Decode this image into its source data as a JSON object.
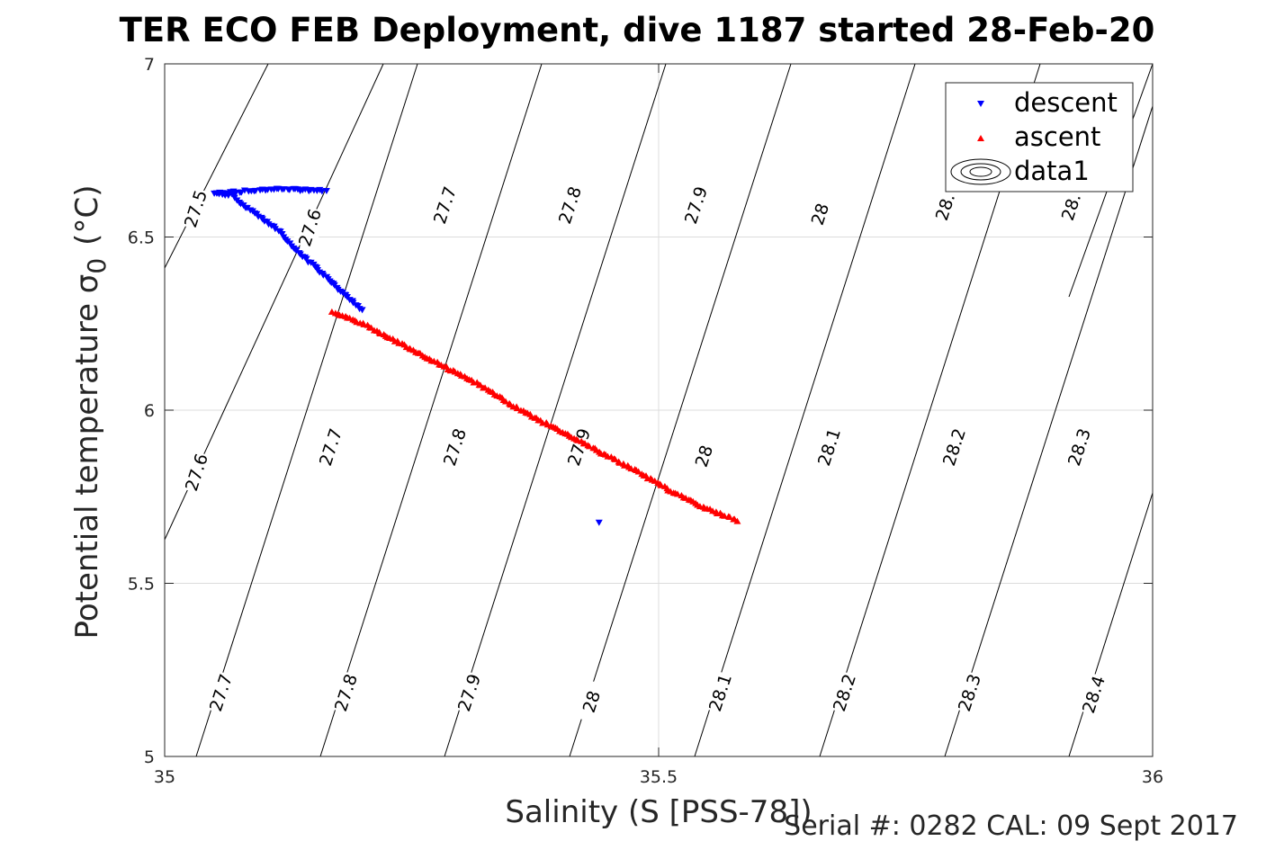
{
  "chart_data": {
    "type": "scatter",
    "title": "TER ECO FEB Deployment, dive 1187 started 28-Feb-20",
    "xlabel": "Salinity (S [PSS-78])",
    "ylabel_main": "Potential temperature σ",
    "ylabel_sub": "0",
    "ylabel_unit": "(°C)",
    "xlim": [
      35,
      36
    ],
    "ylim": [
      5,
      7
    ],
    "xticks": [
      35,
      35.5,
      36
    ],
    "xtick_labels": [
      "35",
      "35.5",
      "36"
    ],
    "yticks": [
      5,
      5.5,
      6,
      6.5,
      7
    ],
    "ytick_labels": [
      "5",
      "5.5",
      "6",
      "6.5",
      "7"
    ],
    "grid": true,
    "legend": {
      "placement": "top-right",
      "entries": [
        "descent",
        "ascent",
        "data1"
      ]
    },
    "series": [
      {
        "name": "descent",
        "color": "#0000ff",
        "marker": "triangle-down",
        "points": [
          [
            35.163,
            6.635
          ],
          [
            35.148,
            6.635
          ],
          [
            35.13,
            6.637
          ],
          [
            35.11,
            6.638
          ],
          [
            35.09,
            6.635
          ],
          [
            35.07,
            6.63
          ],
          [
            35.05,
            6.625
          ],
          [
            35.07,
            6.622
          ],
          [
            35.075,
            6.6
          ],
          [
            35.095,
            6.56
          ],
          [
            35.115,
            6.52
          ],
          [
            35.13,
            6.47
          ],
          [
            35.15,
            6.42
          ],
          [
            35.165,
            6.38
          ],
          [
            35.18,
            6.34
          ],
          [
            35.195,
            6.3
          ],
          [
            35.2,
            6.29
          ],
          [
            35.44,
            5.675
          ]
        ]
      },
      {
        "name": "ascent",
        "color": "#ff0000",
        "marker": "triangle-up",
        "points": [
          [
            35.17,
            6.285
          ],
          [
            35.2,
            6.25
          ],
          [
            35.24,
            6.19
          ],
          [
            35.28,
            6.13
          ],
          [
            35.32,
            6.07
          ],
          [
            35.36,
            6.0
          ],
          [
            35.4,
            5.94
          ],
          [
            35.44,
            5.88
          ],
          [
            35.48,
            5.82
          ],
          [
            35.51,
            5.77
          ],
          [
            35.545,
            5.72
          ],
          [
            35.58,
            5.68
          ]
        ]
      }
    ],
    "isopycnals": {
      "upper_labels": [
        "27.5",
        "27.6",
        "27.7",
        "27.8",
        "27.9",
        "28",
        "28.",
        "28."
      ],
      "middle_labels": [
        "27.6",
        "27.7",
        "27.8",
        "27.9",
        "28",
        "28.1",
        "28.2",
        "28.3"
      ],
      "lower_labels": [
        "27.7",
        "27.8",
        "27.9",
        "28",
        "28.1",
        "28.2",
        "28.3",
        "28.4"
      ]
    },
    "footer": "Serial #: 0282  CAL: 09 Sept 2017"
  }
}
